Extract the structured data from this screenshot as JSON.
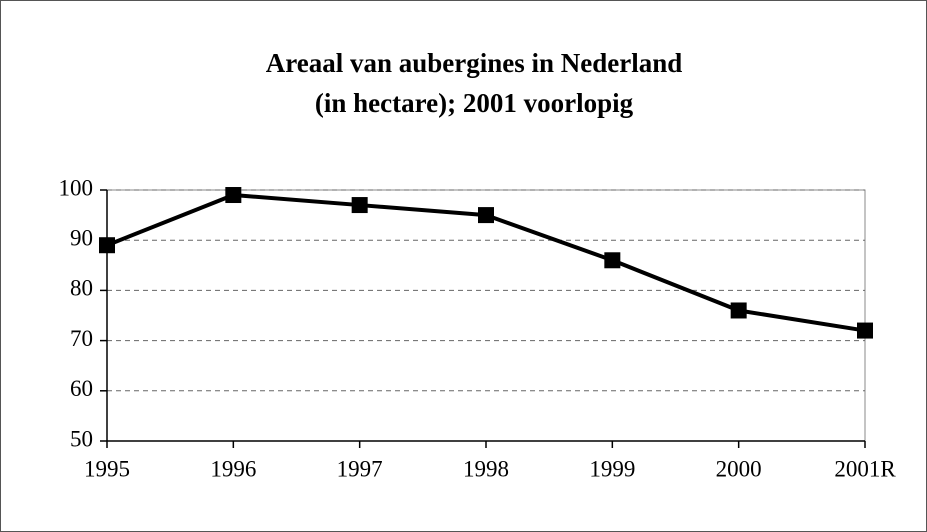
{
  "chart_data": {
    "type": "line",
    "title": [
      "Areaal van aubergines in Nederland",
      "(in hectare); 2001 voorlopig"
    ],
    "categories": [
      "1995",
      "1996",
      "1997",
      "1998",
      "1999",
      "2000",
      "2001R"
    ],
    "series": [
      {
        "color": "#000000",
        "values": [
          89,
          99,
          97,
          95,
          86,
          76,
          72
        ]
      }
    ],
    "ylim": [
      50,
      100
    ],
    "yticks": [
      50,
      60,
      70,
      80,
      90,
      100
    ],
    "grid": true
  }
}
